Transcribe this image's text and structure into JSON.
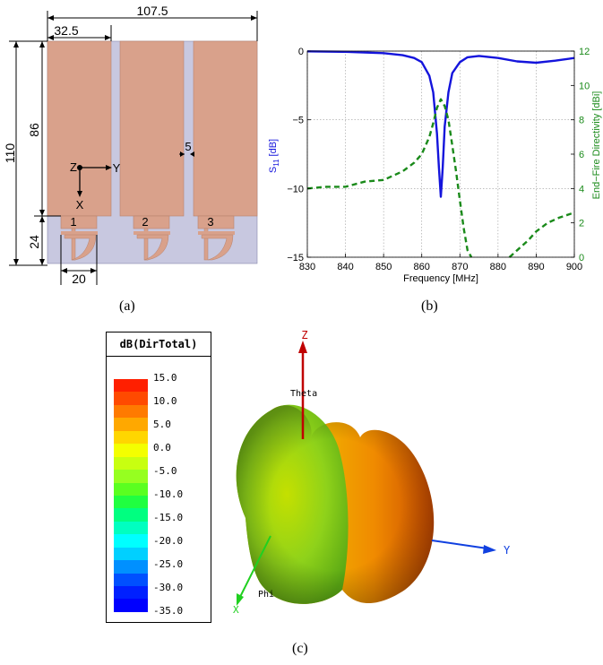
{
  "panel_a": {
    "caption": "(a)",
    "dims": {
      "total_width": "107.5",
      "offset_width": "32.5",
      "total_height": "110",
      "patch_height": "86",
      "feed_height": "24",
      "feed_width": "20",
      "gap": "5"
    },
    "axes": {
      "z": "Z",
      "y": "Y",
      "x": "X"
    },
    "ports": [
      "1",
      "2",
      "3"
    ]
  },
  "panel_b": {
    "caption": "(b)",
    "chart_data": {
      "type": "line",
      "xlabel": "Frequency [MHz]",
      "ylabel_left_main": "S",
      "ylabel_left_sub": "11",
      "ylabel_left_unit": "[dB]",
      "ylabel_right": "End−Fire Directivity [dBi]",
      "xlim": [
        830,
        900
      ],
      "ylim_left": [
        -15,
        0
      ],
      "ylim_right": [
        0,
        12
      ],
      "x_ticks": [
        "830",
        "840",
        "850",
        "860",
        "870",
        "880",
        "890",
        "900"
      ],
      "y_left_ticks": [
        "0",
        "−5",
        "−10",
        "−15"
      ],
      "y_right_ticks": [
        "0",
        "2",
        "4",
        "6",
        "8",
        "10",
        "12"
      ],
      "grid": true,
      "series": [
        {
          "axis": "left",
          "style": "solid",
          "color": "#1414dc",
          "x": [
            830,
            840,
            850,
            855,
            858,
            860,
            862,
            863,
            864,
            864.5,
            865,
            865.5,
            866,
            867,
            868,
            870,
            872,
            875,
            880,
            885,
            890,
            895,
            900
          ],
          "y": [
            -0.02,
            -0.05,
            -0.15,
            -0.3,
            -0.5,
            -0.8,
            -1.8,
            -3.0,
            -6.0,
            -8.5,
            -10.6,
            -8.5,
            -5.5,
            -3.0,
            -1.6,
            -0.8,
            -0.45,
            -0.35,
            -0.5,
            -0.75,
            -0.85,
            -0.7,
            -0.5
          ]
        },
        {
          "axis": "right",
          "style": "dashed",
          "color": "#1a8a1a",
          "x": [
            830,
            835,
            840,
            845,
            850,
            855,
            858,
            860,
            862,
            863,
            864,
            865,
            866,
            867,
            868,
            869,
            870,
            871,
            872,
            873
          ],
          "y": [
            4.0,
            4.1,
            4.1,
            4.4,
            4.5,
            5.0,
            5.5,
            6.0,
            7.0,
            7.8,
            8.7,
            9.2,
            8.8,
            8.0,
            6.5,
            5.0,
            3.3,
            1.7,
            0.4,
            0.0
          ]
        },
        {
          "axis": "right",
          "style": "dashed",
          "color": "#1a8a1a",
          "x": [
            883,
            885,
            888,
            890,
            893,
            896,
            900
          ],
          "y": [
            0.0,
            0.4,
            1.0,
            1.5,
            2.0,
            2.3,
            2.6
          ]
        }
      ]
    }
  },
  "panel_c": {
    "caption": "(c)",
    "legend_title": "dB(DirTotal)",
    "legend_values": [
      "15.0",
      "10.0",
      "5.0",
      "0.0",
      "-5.0",
      "-10.0",
      "-15.0",
      "-20.0",
      "-25.0",
      "-30.0",
      "-35.0"
    ],
    "legend_colors": [
      "#ff1f00",
      "#ff4a00",
      "#ff7a00",
      "#ffa800",
      "#ffd600",
      "#f4ff00",
      "#c8ff10",
      "#96ff20",
      "#5aff20",
      "#20ff40",
      "#00ff80",
      "#00ffc0",
      "#00ffff",
      "#00d0ff",
      "#0090ff",
      "#0050ff",
      "#0020ff",
      "#0000ff"
    ],
    "axis_labels": {
      "z": "Z",
      "y": "Y",
      "x": "X",
      "theta": "Theta",
      "phi": "Phi"
    }
  }
}
